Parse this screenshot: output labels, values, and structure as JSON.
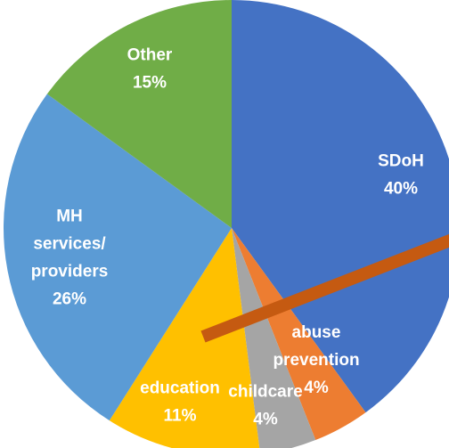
{
  "chart_data": {
    "type": "pie",
    "categories": [
      "SDoH",
      "abuse prevention",
      "childcare",
      "education",
      "MH services/ providers",
      "Other"
    ],
    "values": [
      40,
      4,
      4,
      11,
      26,
      15
    ],
    "value_labels": [
      "40%",
      "4%",
      "4%",
      "11%",
      "26%",
      "15%"
    ],
    "colors": [
      "#4472c4",
      "#ed7d31",
      "#a5a5a5",
      "#ffc000",
      "#5b9bd5",
      "#70ad47"
    ]
  }
}
